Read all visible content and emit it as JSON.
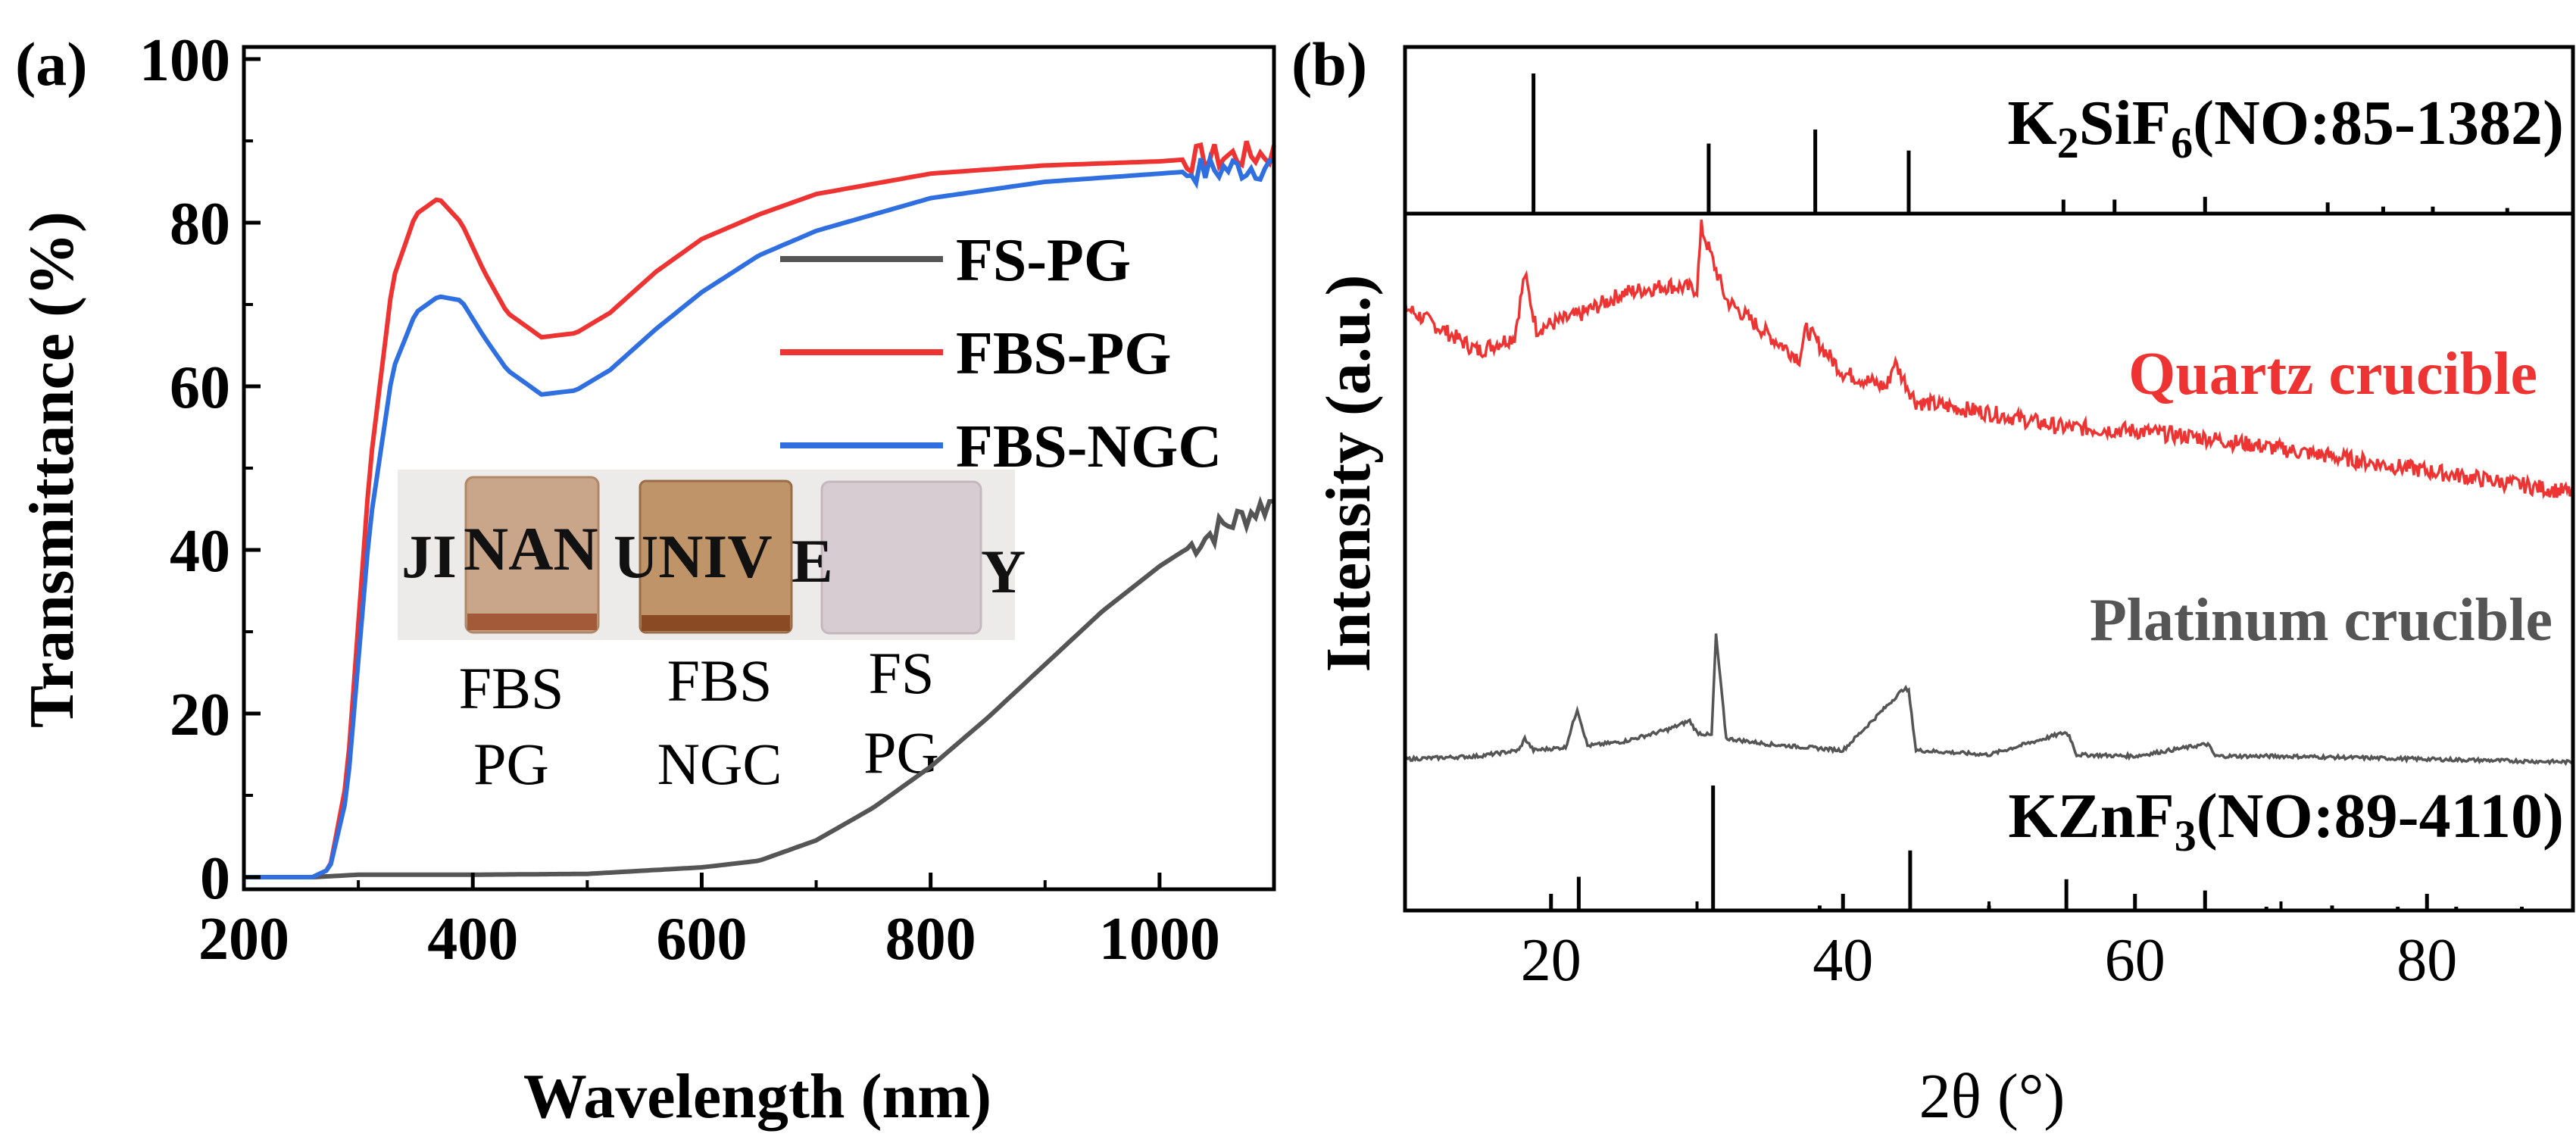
{
  "panels": {
    "a": {
      "label": "(a)"
    },
    "b": {
      "label": "(b)"
    }
  },
  "chart_data": [
    {
      "type": "line",
      "panel": "a",
      "xlabel": "Wavelength (nm)",
      "ylabel": "Transmittance (%)",
      "xlim": [
        200,
        1100
      ],
      "ylim": [
        0,
        100
      ],
      "xticks": [
        200,
        400,
        600,
        800,
        1000
      ],
      "yticks": [
        0,
        20,
        40,
        60,
        80,
        100
      ],
      "legend_position": "right",
      "series": [
        {
          "name": "FS-PG",
          "color": "#555555",
          "x": [
            200,
            260,
            300,
            400,
            500,
            600,
            650,
            700,
            750,
            800,
            850,
            900,
            950,
            1000,
            1050,
            1100
          ],
          "y": [
            0,
            0,
            0.3,
            0.3,
            0.4,
            1.2,
            2.0,
            4.5,
            8.5,
            13.5,
            19.5,
            26,
            32.5,
            38,
            42.5,
            46
          ]
        },
        {
          "name": "FBS-PG",
          "color": "#ee3333",
          "x": [
            200,
            260,
            275,
            290,
            310,
            330,
            350,
            370,
            390,
            410,
            430,
            460,
            490,
            520,
            560,
            600,
            650,
            700,
            800,
            900,
            1000,
            1050,
            1100
          ],
          "y": [
            0,
            0,
            1,
            12,
            50,
            73,
            81,
            83,
            80,
            74,
            69,
            66,
            66.5,
            69,
            74,
            78,
            81,
            83.5,
            86,
            87,
            87.5,
            88,
            88.5
          ]
        },
        {
          "name": "FBS-NGC",
          "color": "#2f6fe0",
          "x": [
            200,
            260,
            275,
            290,
            310,
            330,
            350,
            370,
            390,
            410,
            430,
            460,
            490,
            520,
            560,
            600,
            650,
            700,
            800,
            900,
            1000,
            1050,
            1100
          ],
          "y": [
            0,
            0,
            1,
            10,
            43,
            62,
            69,
            71,
            70.5,
            66,
            62,
            59,
            59.5,
            62,
            67,
            71.5,
            76,
            79,
            83,
            85,
            86,
            86.5,
            87
          ]
        }
      ],
      "inset_photo": {
        "letters": [
          "JI",
          "NAN",
          "UNIV",
          "E",
          "Y"
        ],
        "captions": [
          [
            "FBS",
            "PG"
          ],
          [
            "FBS",
            "NGC"
          ],
          [
            "FS",
            "PG"
          ]
        ]
      }
    },
    {
      "type": "line",
      "panel": "b",
      "xlabel": "2θ (°)",
      "ylabel": "Intensity (a.u.)",
      "xlim": [
        10,
        90
      ],
      "xticks": [
        20,
        40,
        60,
        80
      ],
      "series": [
        {
          "name": "Quartz crucible",
          "color": "#ee3333",
          "x": [
            10,
            15,
            17.5,
            18.2,
            19,
            22,
            25,
            28,
            30,
            30.3,
            32,
            35,
            37,
            37.5,
            40,
            43,
            43.5,
            45,
            50,
            55,
            60,
            65,
            70,
            75,
            80,
            85,
            90
          ],
          "y": [
            0.78,
            0.66,
            0.7,
            0.87,
            0.72,
            0.76,
            0.82,
            0.84,
            0.83,
            1.0,
            0.8,
            0.7,
            0.64,
            0.72,
            0.6,
            0.56,
            0.63,
            0.52,
            0.49,
            0.45,
            0.44,
            0.42,
            0.39,
            0.36,
            0.33,
            0.3,
            0.27
          ]
        },
        {
          "name": "Platinum crucible",
          "color": "#555555",
          "x": [
            10,
            15,
            17.8,
            18.2,
            18.8,
            21,
            21.8,
            22.5,
            25,
            28,
            29.5,
            30,
            31,
            31.3,
            32,
            35,
            40,
            44.2,
            44.5,
            45,
            50,
            55.2,
            55.5,
            56,
            60,
            64.8,
            65,
            65.5,
            70,
            75,
            80,
            85,
            90
          ],
          "y": [
            0.02,
            0.03,
            0.05,
            0.09,
            0.05,
            0.06,
            0.19,
            0.065,
            0.08,
            0.12,
            0.15,
            0.11,
            0.1,
            0.44,
            0.09,
            0.07,
            0.05,
            0.26,
            0.25,
            0.05,
            0.035,
            0.11,
            0.1,
            0.035,
            0.03,
            0.07,
            0.07,
            0.03,
            0.03,
            0.025,
            0.02,
            0.015,
            0.01
          ]
        }
      ],
      "annotations": [
        "Quartz crucible",
        "Platinum crucible"
      ],
      "reference_top": {
        "formula": "K2SiF6(NO:85-1382)",
        "peaks": [
          [
            18.8,
            1.0
          ],
          [
            30.8,
            0.5
          ],
          [
            38.1,
            0.6
          ],
          [
            44.5,
            0.45
          ],
          [
            55.1,
            0.1
          ],
          [
            58.6,
            0.1
          ],
          [
            64.8,
            0.12
          ],
          [
            73.2,
            0.08
          ],
          [
            77.0,
            0.05
          ],
          [
            80.4,
            0.05
          ],
          [
            85.5,
            0.04
          ]
        ]
      },
      "reference_bottom": {
        "formula": "KZnF3(NO:89-4110)",
        "peaks": [
          [
            21.9,
            0.27
          ],
          [
            31.1,
            1.0
          ],
          [
            38.4,
            0.04
          ],
          [
            44.6,
            0.48
          ],
          [
            50.0,
            0.04
          ],
          [
            55.3,
            0.25
          ],
          [
            64.8,
            0.16
          ],
          [
            69.0,
            0.03
          ],
          [
            73.5,
            0.04
          ],
          [
            78.0,
            0.03
          ],
          [
            82.0,
            0.03
          ],
          [
            86.5,
            0.03
          ]
        ]
      }
    }
  ]
}
